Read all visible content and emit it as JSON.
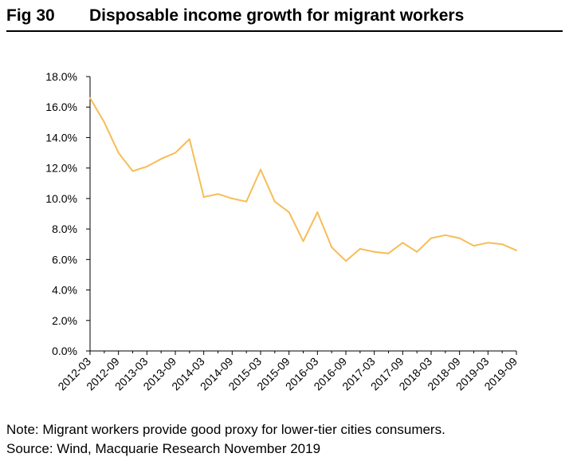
{
  "header": {
    "fig_label": "Fig 30",
    "title": "Disposable income growth for migrant workers"
  },
  "footer": {
    "note": "Note: Migrant workers provide good proxy for lower-tier cities consumers.",
    "source": "Source: Wind, Macquarie Research November 2019"
  },
  "colors": {
    "line": "#F7BD56",
    "axis": "#000000"
  },
  "chart_data": {
    "type": "line",
    "title": "",
    "xlabel": "",
    "ylabel": "",
    "ylim": [
      0,
      18
    ],
    "yticks": [
      "0.0%",
      "2.0%",
      "4.0%",
      "6.0%",
      "8.0%",
      "10.0%",
      "12.0%",
      "14.0%",
      "16.0%",
      "18.0%"
    ],
    "x": [
      "2012-03",
      "2012-06",
      "2012-09",
      "2012-12",
      "2013-03",
      "2013-06",
      "2013-09",
      "2013-12",
      "2014-03",
      "2014-06",
      "2014-09",
      "2014-12",
      "2015-03",
      "2015-06",
      "2015-09",
      "2015-12",
      "2016-03",
      "2016-06",
      "2016-09",
      "2016-12",
      "2017-03",
      "2017-06",
      "2017-09",
      "2017-12",
      "2018-03",
      "2018-06",
      "2018-09",
      "2018-12",
      "2019-03",
      "2019-06",
      "2019-09"
    ],
    "xtick_labels": [
      "2012-03",
      "2012-09",
      "2013-03",
      "2013-09",
      "2014-03",
      "2014-09",
      "2015-03",
      "2015-09",
      "2016-03",
      "2016-09",
      "2017-03",
      "2017-09",
      "2018-03",
      "2018-09",
      "2019-03",
      "2019-09"
    ],
    "series": [
      {
        "name": "",
        "values": [
          16.6,
          15.0,
          13.0,
          11.8,
          12.1,
          12.6,
          13.0,
          13.9,
          10.1,
          10.3,
          10.0,
          9.8,
          11.9,
          9.8,
          9.1,
          7.2,
          9.1,
          6.8,
          5.9,
          6.7,
          6.5,
          6.4,
          7.1,
          6.5,
          7.4,
          7.6,
          7.4,
          6.9,
          7.1,
          7.0,
          6.6
        ]
      }
    ],
    "grid": false,
    "legend": "none"
  }
}
